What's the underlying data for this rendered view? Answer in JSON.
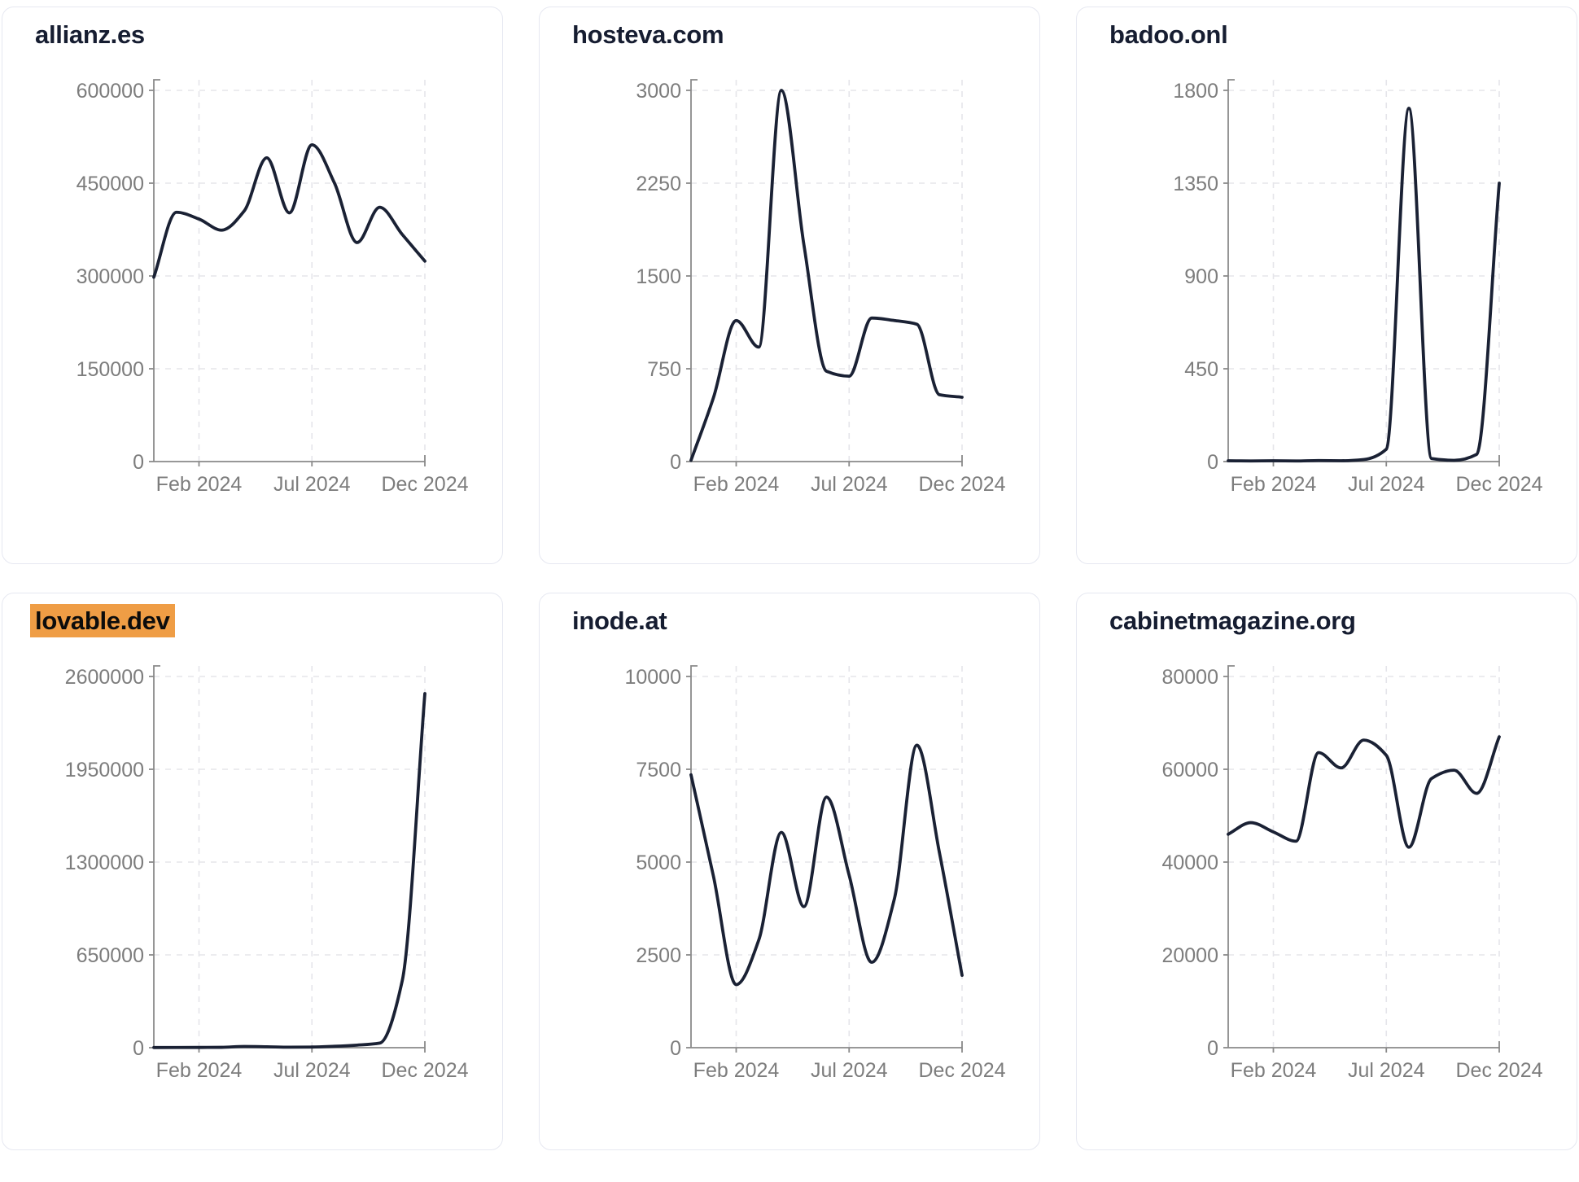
{
  "page": {
    "background": "#ffffff",
    "description": "Domain traffic dashboard with six line-chart cards"
  },
  "colors": {
    "line": "#1a2134",
    "title": "#161d31",
    "highlight_bg": "#ef9d45",
    "highlight_text": "#0c0c0c",
    "tick_label": "#7d7d7d",
    "axis": "#8a8a8a",
    "gridline": "#e5e5ea",
    "card_border": "#e6e8f1",
    "card_bg": "#ffffff"
  },
  "chart_data": [
    {
      "type": "line",
      "title": "allianz.es",
      "highlighted": false,
      "x": [
        "Dec 2023",
        "Jan 2024",
        "Feb 2024",
        "Mar 2024",
        "Apr 2024",
        "May 2024",
        "Jun 2024",
        "Jul 2024",
        "Aug 2024",
        "Sep 2024",
        "Oct 2024",
        "Nov 2024",
        "Dec 2024"
      ],
      "values": [
        298000,
        403000,
        392000,
        374000,
        405000,
        491000,
        402000,
        512000,
        450000,
        354000,
        411000,
        367000,
        324000
      ],
      "ylim": [
        0,
        600000
      ],
      "y_ticks": [
        0,
        150000,
        300000,
        450000,
        600000
      ],
      "x_ticks": [
        "Feb 2024",
        "Jul 2024",
        "Dec 2024"
      ],
      "grid": true,
      "legend": "none"
    },
    {
      "type": "line",
      "title": "hosteva.com",
      "highlighted": false,
      "x": [
        "Dec 2023",
        "Jan 2024",
        "Feb 2024",
        "Mar 2024",
        "Apr 2024",
        "May 2024",
        "Jun 2024",
        "Jul 2024",
        "Aug 2024",
        "Sep 2024",
        "Oct 2024",
        "Nov 2024",
        "Dec 2024"
      ],
      "values": [
        10,
        520,
        1140,
        925,
        3000,
        1750,
        730,
        690,
        1160,
        1140,
        1110,
        540,
        520
      ],
      "ylim": [
        0,
        3000
      ],
      "y_ticks": [
        0,
        750,
        1500,
        2250,
        3000
      ],
      "x_ticks": [
        "Feb 2024",
        "Jul 2024",
        "Dec 2024"
      ],
      "grid": true,
      "legend": "none"
    },
    {
      "type": "line",
      "title": "badoo.onl",
      "highlighted": false,
      "x": [
        "Dec 2023",
        "Jan 2024",
        "Feb 2024",
        "Mar 2024",
        "Apr 2024",
        "May 2024",
        "Jun 2024",
        "Jul 2024",
        "Aug 2024",
        "Sep 2024",
        "Oct 2024",
        "Nov 2024",
        "Dec 2024"
      ],
      "values": [
        4,
        3,
        4,
        3,
        5,
        4,
        10,
        60,
        1713,
        15,
        6,
        35,
        1350
      ],
      "ylim": [
        0,
        1800
      ],
      "y_ticks": [
        0,
        450,
        900,
        1350,
        1800
      ],
      "x_ticks": [
        "Feb 2024",
        "Jul 2024",
        "Dec 2024"
      ],
      "grid": true,
      "legend": "none"
    },
    {
      "type": "line",
      "title": "lovable.dev",
      "highlighted": true,
      "x": [
        "Dec 2023",
        "Jan 2024",
        "Feb 2024",
        "Mar 2024",
        "Apr 2024",
        "May 2024",
        "Jun 2024",
        "Jul 2024",
        "Aug 2024",
        "Sep 2024",
        "Oct 2024",
        "Nov 2024",
        "Dec 2024"
      ],
      "values": [
        1200,
        1400,
        1800,
        2600,
        8500,
        6500,
        3500,
        4500,
        10000,
        18000,
        32000,
        470000,
        2480000
      ],
      "ylim": [
        0,
        2600000
      ],
      "y_ticks": [
        0,
        650000,
        1300000,
        1950000,
        2600000
      ],
      "x_ticks": [
        "Feb 2024",
        "Jul 2024",
        "Dec 2024"
      ],
      "grid": true,
      "legend": "none"
    },
    {
      "type": "line",
      "title": "inode.at",
      "highlighted": false,
      "x": [
        "Dec 2023",
        "Jan 2024",
        "Feb 2024",
        "Mar 2024",
        "Apr 2024",
        "May 2024",
        "Jun 2024",
        "Jul 2024",
        "Aug 2024",
        "Sep 2024",
        "Oct 2024",
        "Nov 2024",
        "Dec 2024"
      ],
      "values": [
        7350,
        4600,
        1700,
        2900,
        5800,
        3800,
        6750,
        4650,
        2300,
        4000,
        8150,
        5250,
        1950
      ],
      "ylim": [
        0,
        10000
      ],
      "y_ticks": [
        0,
        2500,
        5000,
        7500,
        10000
      ],
      "x_ticks": [
        "Feb 2024",
        "Jul 2024",
        "Dec 2024"
      ],
      "grid": true,
      "legend": "none"
    },
    {
      "type": "line",
      "title": "cabinetmagazine.org",
      "highlighted": false,
      "x": [
        "Dec 2023",
        "Jan 2024",
        "Feb 2024",
        "Mar 2024",
        "Apr 2024",
        "May 2024",
        "Jun 2024",
        "Jul 2024",
        "Aug 2024",
        "Sep 2024",
        "Oct 2024",
        "Nov 2024",
        "Dec 2024"
      ],
      "values": [
        46000,
        48500,
        46500,
        44500,
        63600,
        60300,
        66300,
        63000,
        43200,
        58000,
        59800,
        54800,
        67000
      ],
      "ylim": [
        0,
        80000
      ],
      "y_ticks": [
        0,
        20000,
        40000,
        60000,
        80000
      ],
      "x_ticks": [
        "Feb 2024",
        "Jul 2024",
        "Dec 2024"
      ],
      "grid": true,
      "legend": "none"
    }
  ]
}
